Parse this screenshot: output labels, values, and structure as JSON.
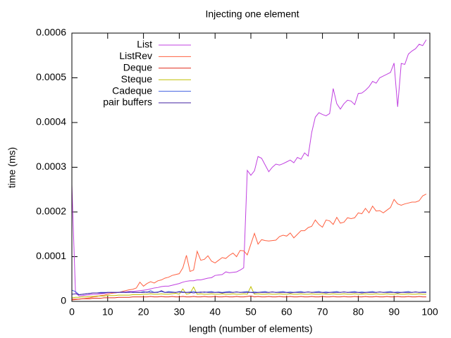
{
  "chart_data": {
    "type": "line",
    "title": "Injecting one element",
    "xlabel": "length (number of elements)",
    "ylabel": "time (ms)",
    "x": [
      0,
      1,
      2,
      3,
      4,
      5,
      6,
      7,
      8,
      9,
      10,
      11,
      12,
      13,
      14,
      15,
      16,
      17,
      18,
      19,
      20,
      21,
      22,
      23,
      24,
      25,
      26,
      27,
      28,
      29,
      30,
      31,
      32,
      33,
      34,
      35,
      36,
      37,
      38,
      39,
      40,
      41,
      42,
      43,
      44,
      45,
      46,
      47,
      48,
      49,
      50,
      51,
      52,
      53,
      54,
      55,
      56,
      57,
      58,
      59,
      60,
      61,
      62,
      63,
      64,
      65,
      66,
      67,
      68,
      69,
      70,
      71,
      72,
      73,
      74,
      75,
      76,
      77,
      78,
      79,
      80,
      81,
      82,
      83,
      84,
      85,
      86,
      87,
      88,
      89,
      90,
      91,
      92,
      93,
      94,
      95,
      96,
      97,
      98,
      99
    ],
    "xlim": [
      0,
      100
    ],
    "xticks": [
      0,
      10,
      20,
      30,
      40,
      50,
      60,
      70,
      80,
      90,
      100
    ],
    "ylim": [
      0,
      0.0006
    ],
    "yticks": [
      0,
      0.0001,
      0.0002,
      0.0003,
      0.0004,
      0.0005,
      0.0006
    ],
    "legend": "top-left",
    "series": [
      {
        "name": "List",
        "color": "#c040e0",
        "values": [
          0.00026,
          2e-05,
          1.2e-05,
          1.3e-05,
          1.4e-05,
          1.5e-05,
          1.6e-05,
          1.6e-05,
          1.7e-05,
          1.8e-05,
          1.9e-05,
          2e-05,
          1.9e-05,
          2e-05,
          2.1e-05,
          2.1e-05,
          2.2e-05,
          2.2e-05,
          2.3e-05,
          2.4e-05,
          2.5e-05,
          2.6e-05,
          2.8e-05,
          3e-05,
          3.1e-05,
          3.3e-05,
          3.4e-05,
          3.4e-05,
          3.6e-05,
          3.8e-05,
          4e-05,
          4.3e-05,
          4.5e-05,
          4.6e-05,
          4.6e-05,
          4.8e-05,
          4.8e-05,
          5e-05,
          5.2e-05,
          5.3e-05,
          5.8e-05,
          5.9e-05,
          6e-05,
          6.6e-05,
          6.4e-05,
          6.5e-05,
          6.6e-05,
          7e-05,
          7.5e-05,
          0.000293,
          0.000282,
          0.000292,
          0.000324,
          0.00032,
          0.000305,
          0.00029,
          0.0003,
          0.000307,
          0.000305,
          0.000308,
          0.000312,
          0.000316,
          0.00031,
          0.000322,
          0.000318,
          0.000332,
          0.000325,
          0.000378,
          0.000412,
          0.000422,
          0.000418,
          0.000415,
          0.00042,
          0.000476,
          0.000442,
          0.00043,
          0.000442,
          0.00045,
          0.000448,
          0.00044,
          0.000465,
          0.000466,
          0.000472,
          0.00048,
          0.000492,
          0.000488,
          0.0005,
          0.000504,
          0.000508,
          0.000512,
          0.000533,
          0.000435,
          0.000532,
          0.00053,
          0.000553,
          0.00056,
          0.000565,
          0.000575,
          0.000572,
          0.000585
        ]
      },
      {
        "name": "ListRev",
        "color": "#ff6040",
        "values": [
          3e-06,
          4e-06,
          5e-06,
          6e-06,
          7e-06,
          8e-06,
          1e-05,
          1.1e-05,
          1.3e-05,
          1.4e-05,
          1.6e-05,
          1.8e-05,
          1.9e-05,
          2e-05,
          2.2e-05,
          2.4e-05,
          2.6e-05,
          2.7e-05,
          3e-05,
          4.3e-05,
          3.4e-05,
          4e-05,
          4.4e-05,
          4.1e-05,
          4.6e-05,
          4.8e-05,
          5.2e-05,
          5.4e-05,
          5.8e-05,
          6e-05,
          6.2e-05,
          7.5e-05,
          0.000103,
          6.7e-05,
          7e-05,
          0.000112,
          9.2e-05,
          9.4e-05,
          0.000102,
          9e-05,
          8.6e-05,
          9.2e-05,
          9.8e-05,
          9.6e-05,
          0.000103,
          0.000108,
          0.0001,
          0.000114,
          0.000113,
          0.000104,
          0.000128,
          0.000152,
          0.000128,
          0.000138,
          0.000136,
          0.000135,
          0.000136,
          0.000137,
          0.000145,
          0.000148,
          0.000146,
          0.000153,
          0.000142,
          0.00015,
          0.000158,
          0.000158,
          0.000165,
          0.000168,
          0.000182,
          0.000172,
          0.000166,
          0.000182,
          0.00018,
          0.000172,
          0.000188,
          0.000175,
          0.000177,
          0.000187,
          0.000185,
          0.000187,
          0.000198,
          0.000196,
          0.000208,
          0.000198,
          0.000213,
          0.000202,
          0.000203,
          0.000198,
          0.000204,
          0.00021,
          0.000228,
          0.000218,
          0.000215,
          0.000218,
          0.00022,
          0.000222,
          0.000222,
          0.000225,
          0.000236,
          0.00024
        ]
      },
      {
        "name": "Deque",
        "color": "#e02818",
        "values": [
          5e-06,
          5e-06,
          5e-06,
          6e-06,
          6e-06,
          6e-06,
          7e-06,
          7e-06,
          7e-06,
          8e-06,
          8e-06,
          8e-06,
          8e-06,
          9e-06,
          9e-06,
          9e-06,
          9e-06,
          1e-05,
          1e-05,
          1e-05,
          1e-05,
          1e-05,
          1.1e-05,
          1e-05,
          1e-05,
          1.1e-05,
          1e-05,
          1e-05,
          1.1e-05,
          1e-05,
          1e-05,
          1.1e-05,
          1e-05,
          1e-05,
          1.1e-05,
          1e-05,
          1e-05,
          1.1e-05,
          1e-05,
          1e-05,
          1.1e-05,
          1e-05,
          1e-05,
          1.1e-05,
          1e-05,
          1e-05,
          1.1e-05,
          1e-05,
          1e-05,
          1.1e-05,
          1.2e-05,
          1e-05,
          1.1e-05,
          1e-05,
          1e-05,
          1.1e-05,
          1e-05,
          1e-05,
          1.1e-05,
          1e-05,
          1e-05,
          1.1e-05,
          1e-05,
          1e-05,
          1.1e-05,
          1e-05,
          1e-05,
          1.1e-05,
          1e-05,
          1e-05,
          1.1e-05,
          1e-05,
          1e-05,
          1.1e-05,
          1e-05,
          1e-05,
          1.1e-05,
          1e-05,
          1e-05,
          1.1e-05,
          1e-05,
          1e-05,
          1.1e-05,
          1e-05,
          1e-05,
          1.1e-05,
          1e-05,
          1e-05,
          1.1e-05,
          1e-05,
          1e-05,
          1.1e-05,
          1e-05,
          1e-05,
          1.1e-05,
          1e-05,
          1e-05,
          1.1e-05,
          1e-05,
          1e-05
        ]
      },
      {
        "name": "Steque",
        "color": "#c0c000",
        "values": [
          8e-06,
          9e-06,
          9e-06,
          1e-05,
          1e-05,
          1.1e-05,
          1.1e-05,
          1.2e-05,
          1.2e-05,
          1.2e-05,
          1.3e-05,
          1.3e-05,
          1.3e-05,
          1.4e-05,
          1.4e-05,
          1.4e-05,
          1.4e-05,
          1.5e-05,
          1.5e-05,
          1.5e-05,
          1.6e-05,
          1.6e-05,
          1.7e-05,
          1.6e-05,
          1.6e-05,
          1.7e-05,
          1.6e-05,
          1.6e-05,
          1.7e-05,
          1.8e-05,
          1.6e-05,
          2.8e-05,
          1.6e-05,
          1.8e-05,
          3.2e-05,
          1.6e-05,
          1.7e-05,
          1.6e-05,
          1.6e-05,
          1.7e-05,
          1.6e-05,
          1.6e-05,
          1.7e-05,
          1.6e-05,
          1.6e-05,
          1.7e-05,
          1.6e-05,
          1.6e-05,
          1.7e-05,
          1.6e-05,
          3.3e-05,
          1.6e-05,
          1.7e-05,
          1.6e-05,
          1.6e-05,
          1.7e-05,
          1.6e-05,
          1.6e-05,
          1.7e-05,
          1.6e-05,
          1.6e-05,
          1.7e-05,
          1.6e-05,
          1.6e-05,
          1.7e-05,
          1.6e-05,
          1.6e-05,
          1.7e-05,
          1.6e-05,
          1.6e-05,
          1.7e-05,
          1.6e-05,
          1.6e-05,
          1.7e-05,
          1.6e-05,
          1.6e-05,
          1.7e-05,
          1.6e-05,
          1.6e-05,
          1.7e-05,
          1.6e-05,
          1.6e-05,
          1.7e-05,
          1.6e-05,
          1.6e-05,
          1.7e-05,
          1.6e-05,
          1.6e-05,
          1.7e-05,
          1.6e-05,
          1.6e-05,
          1.7e-05,
          1.6e-05,
          1.6e-05,
          1.7e-05,
          1.6e-05,
          1.6e-05,
          1.7e-05,
          1.6e-05,
          1.6e-05
        ]
      },
      {
        "name": "Cadeque",
        "color": "#4060e0",
        "values": [
          2.5e-05,
          2.2e-05,
          1.5e-05,
          1.6e-05,
          1.7e-05,
          1.8e-05,
          1.9e-05,
          1.9e-05,
          2e-05,
          2e-05,
          2e-05,
          2e-05,
          2e-05,
          2e-05,
          2.1e-05,
          2e-05,
          2e-05,
          2.1e-05,
          2e-05,
          2e-05,
          2.2e-05,
          2e-05,
          2.4e-05,
          2e-05,
          2.1e-05,
          2.2e-05,
          2e-05,
          2.2e-05,
          2.1e-05,
          2e-05,
          2.2e-05,
          2.1e-05,
          2e-05,
          2.1e-05,
          2.2e-05,
          2e-05,
          2.1e-05,
          2e-05,
          2.1e-05,
          2.2e-05,
          2e-05,
          2.1e-05,
          2e-05,
          2.1e-05,
          2.2e-05,
          2e-05,
          2.1e-05,
          2e-05,
          2.1e-05,
          2.2e-05,
          2e-05,
          2.1e-05,
          2e-05,
          2.1e-05,
          2.2e-05,
          2e-05,
          2.1e-05,
          2e-05,
          2.1e-05,
          2.2e-05,
          2e-05,
          2.1e-05,
          2e-05,
          2.1e-05,
          2.2e-05,
          2e-05,
          2.1e-05,
          2e-05,
          2.1e-05,
          2.2e-05,
          2e-05,
          2.1e-05,
          2e-05,
          2.1e-05,
          2.2e-05,
          2e-05,
          2.1e-05,
          2e-05,
          2.1e-05,
          2.2e-05,
          2e-05,
          2.1e-05,
          2e-05,
          2.1e-05,
          2.2e-05,
          2e-05,
          2.1e-05,
          2e-05,
          2.1e-05,
          2.2e-05,
          2e-05,
          2.1e-05,
          2e-05,
          2.1e-05,
          2.2e-05,
          2e-05,
          2.1e-05,
          2e-05,
          2.1e-05,
          2.1e-05
        ]
      },
      {
        "name": "pair buffers",
        "color": "#4020a0",
        "values": [
          1.6e-05,
          1.7e-05,
          1.5e-05,
          1.6e-05,
          1.7e-05,
          1.8e-05,
          1.9e-05,
          1.9e-05,
          1.9e-05,
          1.9e-05,
          2e-05,
          2e-05,
          2e-05,
          2e-05,
          2e-05,
          2e-05,
          2.1e-05,
          2e-05,
          2e-05,
          2e-05,
          2e-05,
          2.1e-05,
          2e-05,
          2e-05,
          2e-05,
          2.4e-05,
          2e-05,
          2e-05,
          2e-05,
          2e-05,
          2.1e-05,
          2e-05,
          2e-05,
          2e-05,
          1.9e-05,
          2e-05,
          2e-05,
          2.1e-05,
          2e-05,
          2e-05,
          2e-05,
          2e-05,
          1.9e-05,
          2e-05,
          2e-05,
          2e-05,
          2.1e-05,
          2e-05,
          2e-05,
          2e-05,
          2e-05,
          1.9e-05,
          2e-05,
          2e-05,
          2e-05,
          2e-05,
          2.1e-05,
          2e-05,
          2e-05,
          2e-05,
          2e-05,
          1.9e-05,
          2e-05,
          2e-05,
          2e-05,
          2e-05,
          2.1e-05,
          2e-05,
          2e-05,
          2e-05,
          2e-05,
          1.9e-05,
          2e-05,
          2e-05,
          2e-05,
          2e-05,
          2.1e-05,
          2e-05,
          2e-05,
          2e-05,
          2e-05,
          1.9e-05,
          2e-05,
          2e-05,
          2e-05,
          2e-05,
          2.1e-05,
          2e-05,
          2e-05,
          2e-05,
          2e-05,
          1.9e-05,
          2e-05,
          2e-05,
          2e-05,
          2e-05,
          2.1e-05,
          2e-05,
          2e-05,
          2e-05
        ]
      }
    ]
  }
}
